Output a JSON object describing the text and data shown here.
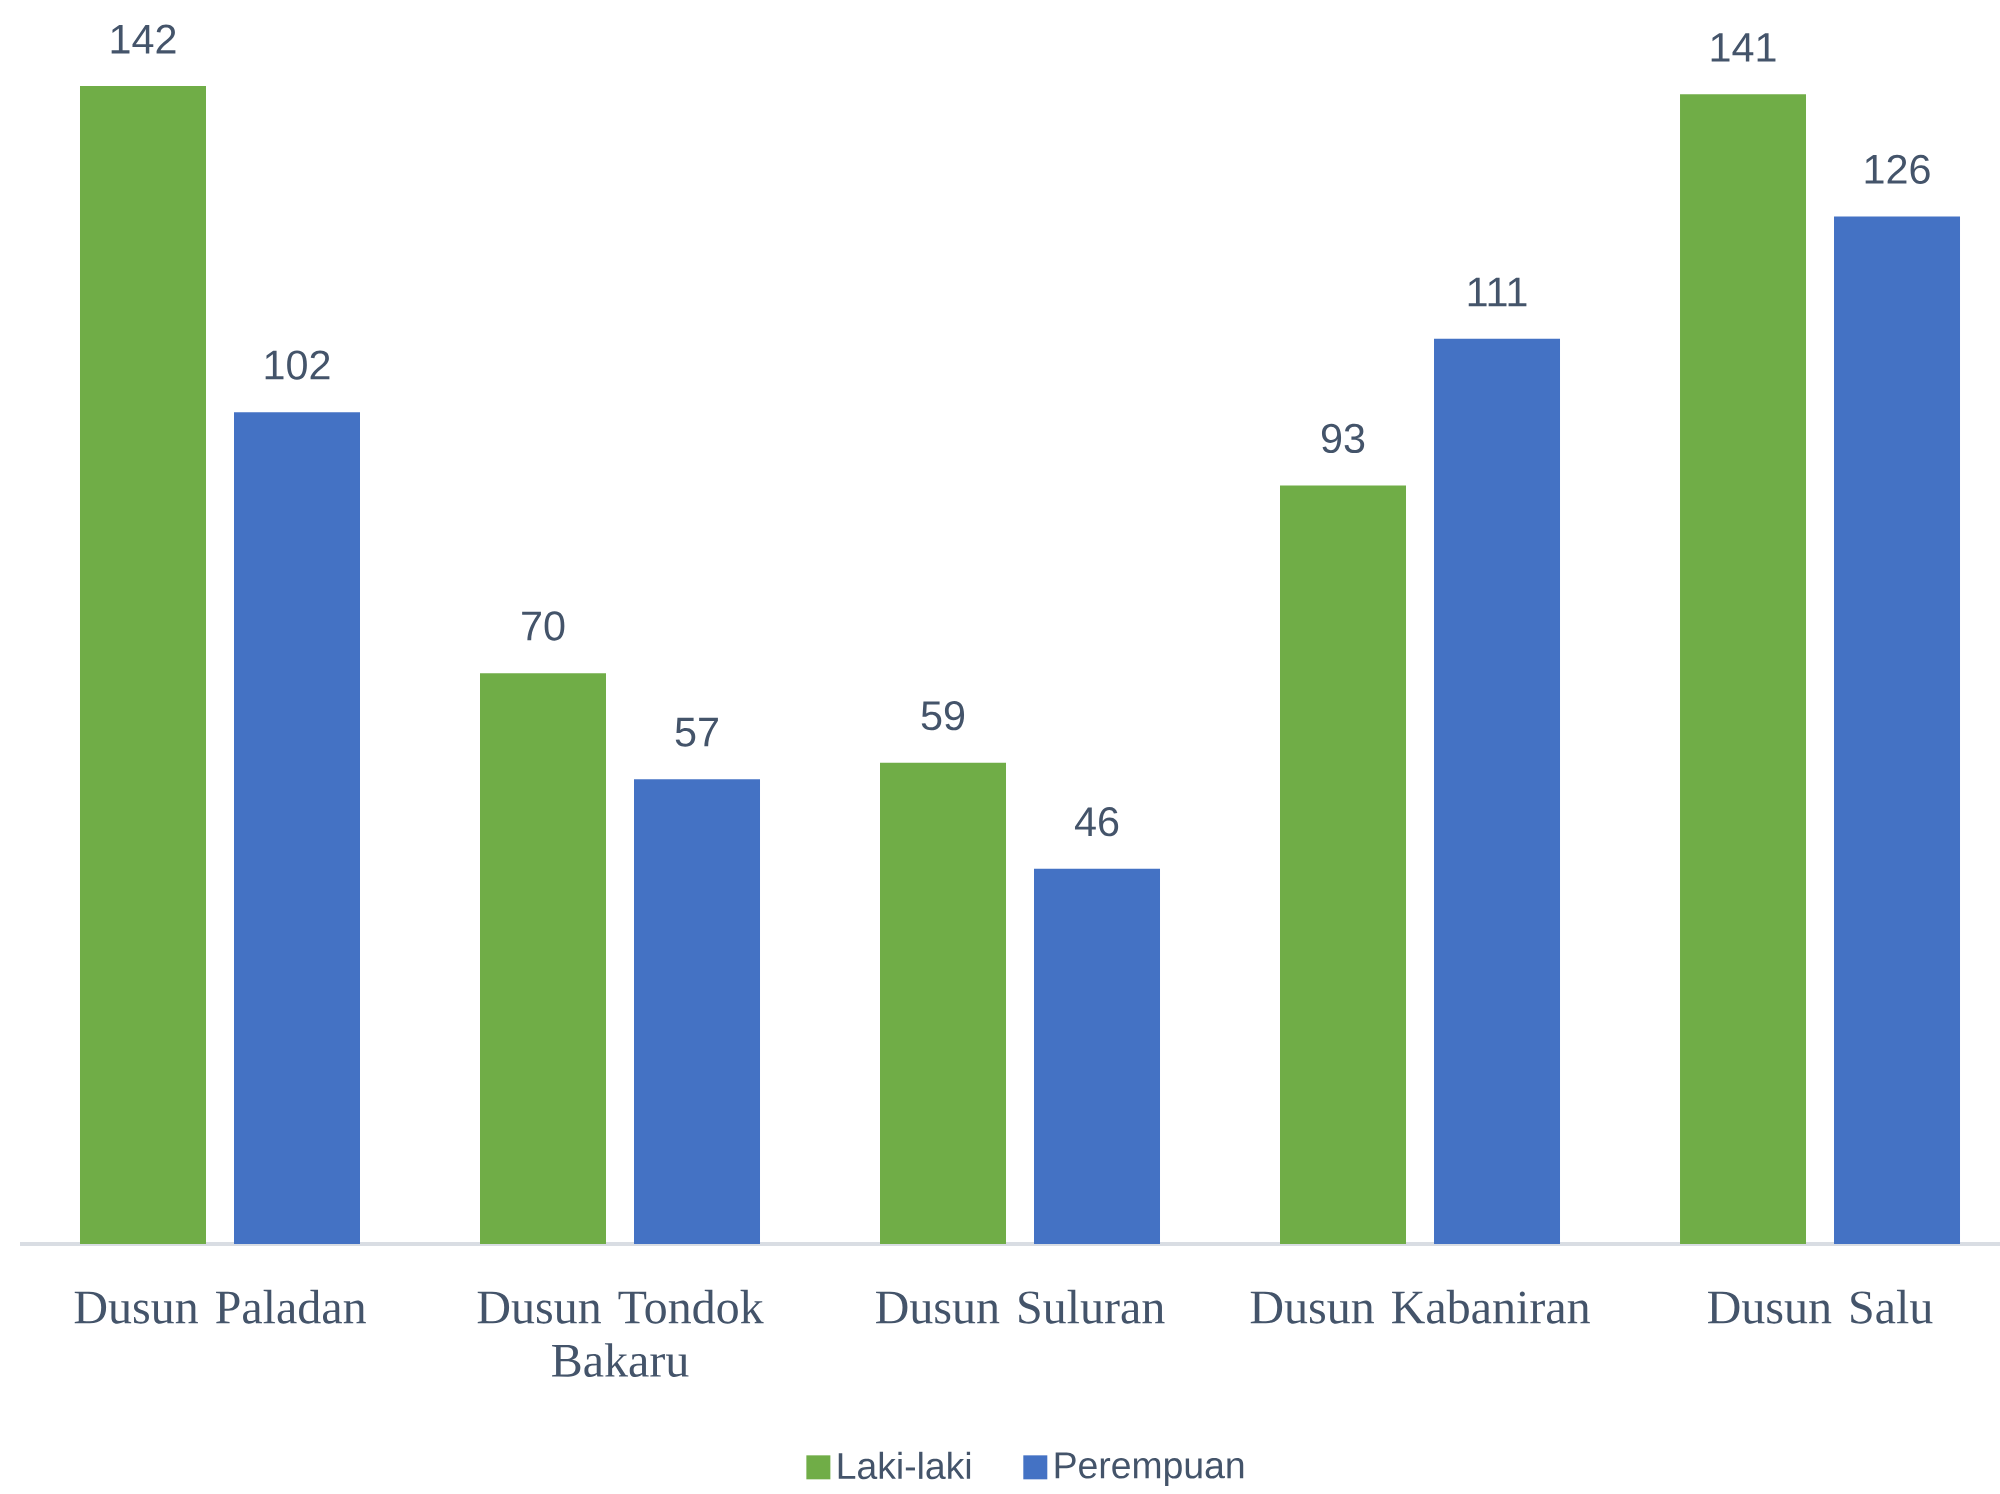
{
  "chart_data": {
    "type": "bar",
    "categories": [
      "Dusun Paladan",
      "Dusun Tondok Bakaru",
      "Dusun Suluran",
      "Dusun Kabaniran",
      "Dusun Salu"
    ],
    "series": [
      {
        "name": "Laki-laki",
        "color": "#70ad47",
        "values": [
          142,
          70,
          59,
          93,
          141
        ]
      },
      {
        "name": "Perempuan",
        "color": "#4472c4",
        "values": [
          102,
          57,
          46,
          111,
          126
        ]
      }
    ],
    "data_labels": true,
    "legend": "bottom",
    "tick_labels": "x"
  }
}
